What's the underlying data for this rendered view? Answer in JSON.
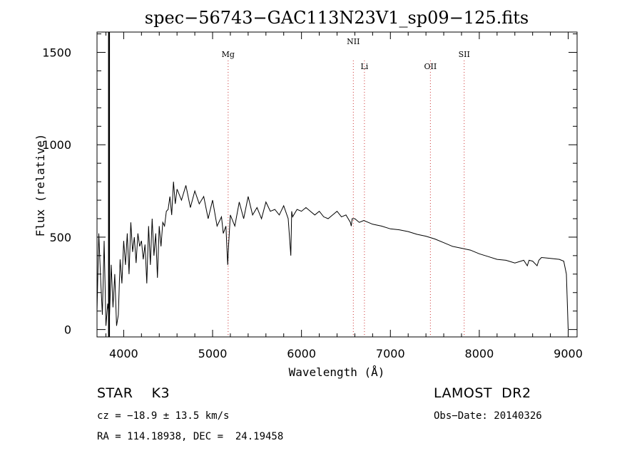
{
  "chart_data": {
    "type": "line",
    "title": "spec−56743−GAC113N23V1_sp09−125.fits",
    "xlabel": "Wavelength (Å)",
    "ylabel": "Flux (relative)",
    "xlim": [
      3700,
      9100
    ],
    "ylim": [
      -40,
      1610
    ],
    "xticks": [
      4000,
      5000,
      6000,
      7000,
      8000,
      9000
    ],
    "yticks": [
      0,
      500,
      1000,
      1500
    ],
    "grid": false,
    "series": [
      {
        "x": [
          3700,
          3720,
          3740,
          3760,
          3780,
          3800,
          3820,
          3840,
          3860,
          3880,
          3900,
          3920,
          3940,
          3960,
          3980,
          4000,
          4020,
          4040,
          4060,
          4080,
          4100,
          4120,
          4140,
          4160,
          4180,
          4200,
          4220,
          4240,
          4260,
          4280,
          4300,
          4320,
          4340,
          4360,
          4380,
          4400,
          4420,
          4440,
          4460,
          4480,
          4500,
          4520,
          4540,
          4560,
          4580,
          4600,
          4650,
          4700,
          4750,
          4800,
          4850,
          4900,
          4950,
          5000,
          5050,
          5100,
          5120,
          5150,
          5170,
          5180,
          5200,
          5250,
          5300,
          5350,
          5400,
          5450,
          5500,
          5550,
          5600,
          5650,
          5700,
          5750,
          5800,
          5850,
          5880,
          5890,
          5900,
          5950,
          6000,
          6050,
          6100,
          6150,
          6200,
          6250,
          6300,
          6350,
          6400,
          6450,
          6500,
          6550,
          6560,
          6570,
          6600,
          6650,
          6700,
          6800,
          6900,
          7000,
          7100,
          7200,
          7300,
          7400,
          7500,
          7600,
          7700,
          7800,
          7900,
          8000,
          8100,
          8200,
          8300,
          8400,
          8500,
          8540,
          8560,
          8600,
          8650,
          8670,
          8700,
          8800,
          8900,
          8950,
          8980,
          9000
        ],
        "y": [
          100,
          520,
          280,
          80,
          480,
          20,
          140,
          60,
          350,
          120,
          300,
          20,
          80,
          380,
          250,
          480,
          350,
          520,
          300,
          580,
          420,
          500,
          360,
          520,
          450,
          480,
          380,
          460,
          250,
          560,
          350,
          600,
          400,
          520,
          280,
          560,
          450,
          580,
          560,
          640,
          650,
          720,
          620,
          800,
          680,
          760,
          700,
          780,
          660,
          750,
          680,
          720,
          600,
          700,
          560,
          610,
          520,
          560,
          350,
          460,
          620,
          560,
          690,
          600,
          720,
          620,
          660,
          600,
          690,
          640,
          650,
          620,
          670,
          600,
          400,
          640,
          610,
          650,
          640,
          660,
          640,
          620,
          640,
          610,
          600,
          620,
          640,
          610,
          620,
          580,
          560,
          600,
          600,
          580,
          590,
          570,
          560,
          545,
          540,
          530,
          515,
          505,
          490,
          470,
          450,
          440,
          430,
          410,
          395,
          380,
          375,
          360,
          375,
          345,
          375,
          370,
          345,
          375,
          390,
          385,
          380,
          370,
          300,
          0
        ]
      }
    ],
    "annotations": [
      {
        "label": "Mg",
        "x": 5175
      },
      {
        "label": "NII",
        "x": 6583
      },
      {
        "label": "Li",
        "x": 6708
      },
      {
        "label": "OII",
        "x": 7450
      },
      {
        "label": "SII",
        "x": 7830
      }
    ],
    "marker_line_x": 3835
  },
  "info": {
    "object_class": "STAR    K3",
    "survey": "LAMOST  DR2",
    "redshift": "cz = −18.9 ± 13.5 km/s",
    "obs_date": "Obs−Date: 20140326",
    "coords": "RA = 114.18938, DEC =  24.19458"
  }
}
